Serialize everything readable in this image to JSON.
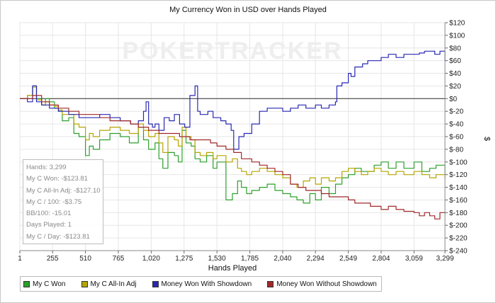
{
  "chart_data": {
    "type": "line",
    "title": "My Currency Won in USD over Hands Played",
    "xlabel": "Hands Played",
    "ylabel": "$",
    "watermark": "POKERTRACKER",
    "x_ticks": [
      "1",
      "255",
      "510",
      "765",
      "1,020",
      "1,275",
      "1,530",
      "1,785",
      "2,040",
      "2,294",
      "2,549",
      "2,804",
      "3,059",
      "3,299"
    ],
    "y_ticks": [
      "$120",
      "$100",
      "$80",
      "$60",
      "$40",
      "$20",
      "$0",
      "$-20",
      "$-40",
      "$-60",
      "$-80",
      "$-100",
      "$-120",
      "$-140",
      "$-160",
      "$-180",
      "$-200",
      "$-220",
      "$-240"
    ],
    "xlim": [
      1,
      3299
    ],
    "ylim": [
      -240,
      120
    ],
    "grid": true,
    "legend_position": "bottom",
    "series": [
      {
        "name": "My C Won",
        "color": "#2ca02c",
        "x": [
          1,
          60,
          100,
          130,
          170,
          200,
          230,
          270,
          300,
          330,
          380,
          420,
          460,
          510,
          540,
          570,
          620,
          700,
          780,
          850,
          920,
          960,
          1000,
          1050,
          1080,
          1110,
          1150,
          1200,
          1230,
          1260,
          1290,
          1330,
          1360,
          1400,
          1450,
          1500,
          1530,
          1600,
          1650,
          1690,
          1720,
          1760,
          1800,
          1860,
          1920,
          1980,
          2040,
          2100,
          2150,
          2200,
          2250,
          2294,
          2340,
          2400,
          2450,
          2500,
          2549,
          2600,
          2650,
          2700,
          2750,
          2804,
          2860,
          2920,
          2980,
          3059,
          3120,
          3180,
          3230,
          3299
        ],
        "y": [
          0,
          5,
          20,
          0,
          -10,
          0,
          -5,
          -15,
          -20,
          -35,
          -30,
          -55,
          -60,
          -90,
          -75,
          -80,
          -65,
          -55,
          -60,
          -70,
          -45,
          -65,
          -80,
          -70,
          -95,
          -110,
          -85,
          -90,
          -100,
          -50,
          -70,
          -75,
          -95,
          -100,
          -90,
          -110,
          -100,
          -160,
          -150,
          -130,
          -140,
          -150,
          -145,
          -140,
          -135,
          -145,
          -150,
          -155,
          -160,
          -165,
          -150,
          -160,
          -140,
          -150,
          -135,
          -125,
          -120,
          -110,
          -115,
          -115,
          -105,
          -100,
          -110,
          -100,
          -110,
          -100,
          -115,
          -110,
          -105,
          -120
        ]
      },
      {
        "name": "My C All-In Adj",
        "color": "#b5a500",
        "x": [
          1,
          60,
          100,
          130,
          170,
          200,
          230,
          270,
          300,
          330,
          380,
          420,
          460,
          510,
          540,
          570,
          620,
          700,
          780,
          850,
          920,
          960,
          1000,
          1050,
          1080,
          1110,
          1150,
          1200,
          1230,
          1260,
          1290,
          1330,
          1360,
          1400,
          1450,
          1500,
          1530,
          1600,
          1650,
          1690,
          1720,
          1760,
          1800,
          1860,
          1920,
          1980,
          2040,
          2100,
          2150,
          2200,
          2250,
          2294,
          2340,
          2400,
          2450,
          2500,
          2549,
          2600,
          2650,
          2700,
          2750,
          2804,
          2860,
          2920,
          2980,
          3059,
          3120,
          3180,
          3230,
          3299
        ],
        "y": [
          0,
          5,
          18,
          -2,
          -10,
          -5,
          -10,
          -12,
          -18,
          -25,
          -25,
          -40,
          -45,
          -65,
          -55,
          -60,
          -50,
          -45,
          -50,
          -55,
          -40,
          -50,
          -60,
          -55,
          -70,
          -85,
          -60,
          -65,
          -75,
          -45,
          -60,
          -65,
          -85,
          -90,
          -85,
          -95,
          -90,
          -100,
          -95,
          -110,
          -115,
          -120,
          -115,
          -110,
          -115,
          -120,
          -125,
          -135,
          -140,
          -130,
          -125,
          -135,
          -125,
          -130,
          -125,
          -115,
          -110,
          -115,
          -120,
          -115,
          -110,
          -115,
          -120,
          -115,
          -120,
          -115,
          -120,
          -125,
          -120,
          -127
        ]
      },
      {
        "name": "Money Won With Showdown",
        "color": "#2828b4",
        "x": [
          1,
          60,
          100,
          130,
          170,
          230,
          300,
          380,
          460,
          540,
          620,
          700,
          780,
          860,
          920,
          960,
          980,
          1000,
          1030,
          1050,
          1080,
          1120,
          1160,
          1200,
          1240,
          1280,
          1320,
          1360,
          1380,
          1400,
          1430,
          1460,
          1500,
          1530,
          1560,
          1600,
          1640,
          1660,
          1700,
          1740,
          1800,
          1860,
          1920,
          1980,
          2040,
          2100,
          2160,
          2220,
          2294,
          2340,
          2400,
          2449,
          2460,
          2500,
          2549,
          2570,
          2600,
          2660,
          2700,
          2750,
          2804,
          2860,
          2920,
          2980,
          3059,
          3100,
          3140,
          3180,
          3220,
          3260,
          3299
        ],
        "y": [
          0,
          -5,
          20,
          -5,
          -10,
          -15,
          -20,
          -25,
          -30,
          -30,
          -25,
          -30,
          -35,
          -40,
          -35,
          -20,
          -5,
          -40,
          -45,
          -40,
          -50,
          -30,
          -35,
          -25,
          -40,
          -45,
          5,
          20,
          -20,
          -25,
          -25,
          -20,
          -30,
          -30,
          -35,
          -40,
          -50,
          -80,
          -60,
          -55,
          -40,
          -20,
          -15,
          -15,
          -20,
          -15,
          -10,
          -15,
          -10,
          -15,
          -10,
          -5,
          20,
          25,
          40,
          35,
          50,
          55,
          60,
          60,
          65,
          70,
          65,
          70,
          70,
          72,
          75,
          75,
          70,
          75,
          60
        ]
      },
      {
        "name": "Money Won Without Showdown",
        "color": "#a02828",
        "x": [
          1,
          60,
          100,
          170,
          230,
          300,
          380,
          460,
          540,
          620,
          700,
          780,
          860,
          920,
          1000,
          1080,
          1160,
          1240,
          1320,
          1400,
          1480,
          1530,
          1600,
          1660,
          1720,
          1800,
          1860,
          1920,
          1980,
          2040,
          2100,
          2160,
          2220,
          2294,
          2340,
          2400,
          2460,
          2549,
          2600,
          2660,
          2720,
          2804,
          2860,
          2920,
          2980,
          3059,
          3100,
          3140,
          3180,
          3220,
          3260,
          3299
        ],
        "y": [
          0,
          0,
          5,
          -5,
          -10,
          -15,
          -20,
          -25,
          -25,
          -30,
          -35,
          -35,
          -40,
          -45,
          -50,
          -55,
          -55,
          -60,
          -65,
          -65,
          -70,
          -75,
          -80,
          -85,
          -95,
          -100,
          -105,
          -110,
          -115,
          -120,
          -135,
          -140,
          -145,
          -145,
          -150,
          -155,
          -155,
          -160,
          -165,
          -165,
          -170,
          -175,
          -170,
          -175,
          -178,
          -180,
          -185,
          -180,
          -185,
          -190,
          -180,
          -182
        ]
      }
    ],
    "stats": [
      "Hands: 3,299",
      "My C Won: -$123.81",
      "My C All-In Adj: -$127.10",
      "My C / 100: -$3.75",
      "BB/100: -15.01",
      "Days Played: 1",
      "My C / Day: -$123.81"
    ]
  }
}
